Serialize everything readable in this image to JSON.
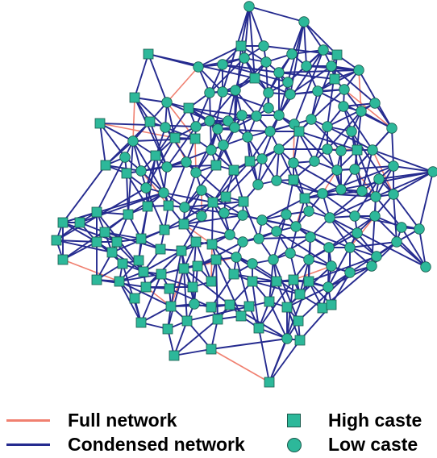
{
  "colors": {
    "full_edge": "#F08070",
    "condensed_edge": "#252B8F",
    "node_fill": "#2DB89A",
    "node_stroke": "#1A5A4C"
  },
  "legend": {
    "full_network": "Full network",
    "condensed_network": "Condensed network",
    "high_caste": "High caste",
    "low_caste": "Low caste"
  }
}
